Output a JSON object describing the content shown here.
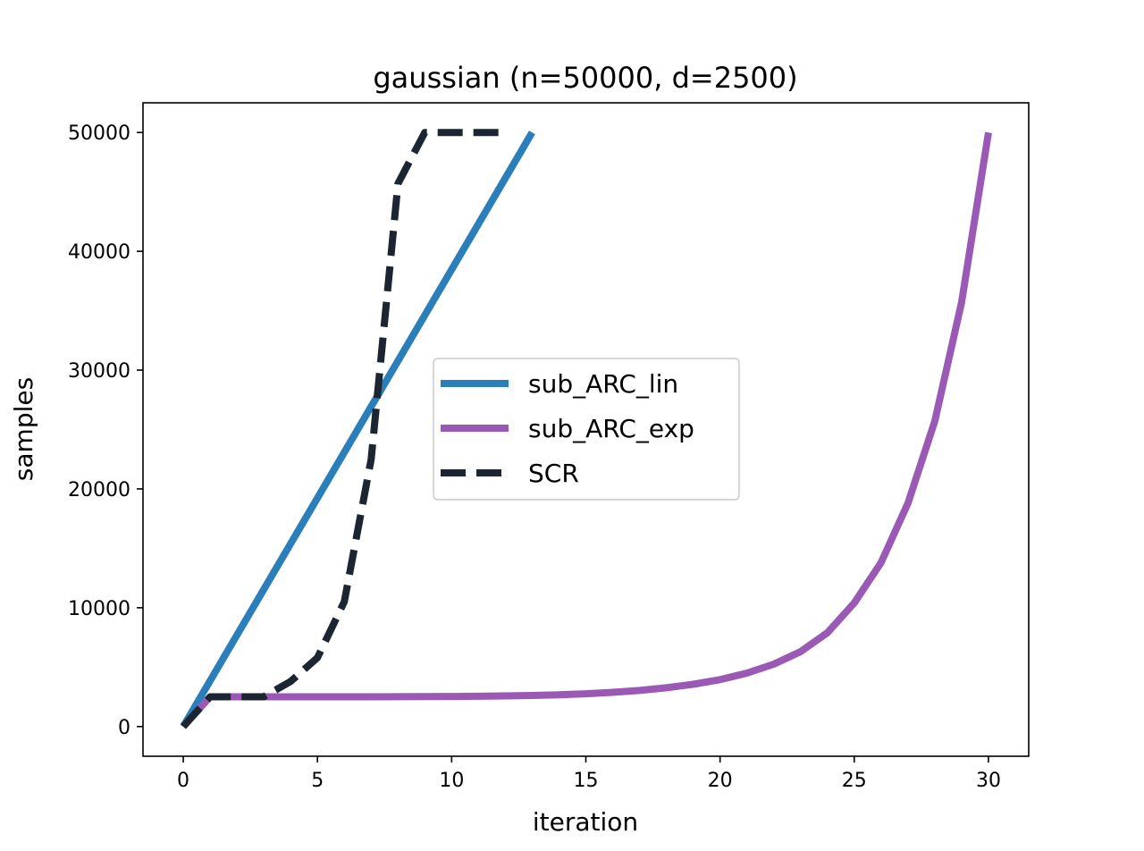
{
  "chart_data": {
    "type": "line",
    "title": "gaussian (n=50000, d=2500)",
    "xlabel": "iteration",
    "ylabel": "samples",
    "xlim": [
      -1.5,
      31.5
    ],
    "ylim": [
      -2500,
      52500
    ],
    "xticks": [
      0,
      5,
      10,
      15,
      20,
      25,
      30
    ],
    "yticks": [
      0,
      10000,
      20000,
      30000,
      40000,
      50000
    ],
    "grid": false,
    "legend_position": "center",
    "series": [
      {
        "name": "sub_ARC_lin",
        "color": "#2a7fba",
        "style": "solid",
        "x": [
          0,
          13
        ],
        "y": [
          0,
          50000
        ]
      },
      {
        "name": "sub_ARC_exp",
        "color": "#9b59b6",
        "style": "solid",
        "x": [
          0,
          1,
          2,
          3,
          4,
          5,
          6,
          7,
          8,
          9,
          10,
          11,
          12,
          13,
          14,
          15,
          16,
          17,
          18,
          19,
          20,
          21,
          22,
          23,
          24,
          25,
          26,
          27,
          28,
          29,
          30
        ],
        "y": [
          0,
          2500,
          2500,
          2500,
          2500,
          2500,
          2500,
          2500,
          2510,
          2520,
          2530,
          2550,
          2580,
          2620,
          2680,
          2760,
          2880,
          3040,
          3260,
          3560,
          3950,
          4500,
          5250,
          6300,
          7900,
          10400,
          13800,
          18800,
          25700,
          35700,
          50000
        ]
      },
      {
        "name": "SCR",
        "color": "#1c2633",
        "style": "dashed",
        "x": [
          0,
          1,
          2,
          3,
          4,
          5,
          6,
          7,
          8,
          9,
          10,
          11,
          12
        ],
        "y": [
          0,
          2500,
          2500,
          2500,
          3800,
          5800,
          10500,
          22500,
          45700,
          50000,
          50000,
          50000,
          50000
        ]
      }
    ]
  }
}
